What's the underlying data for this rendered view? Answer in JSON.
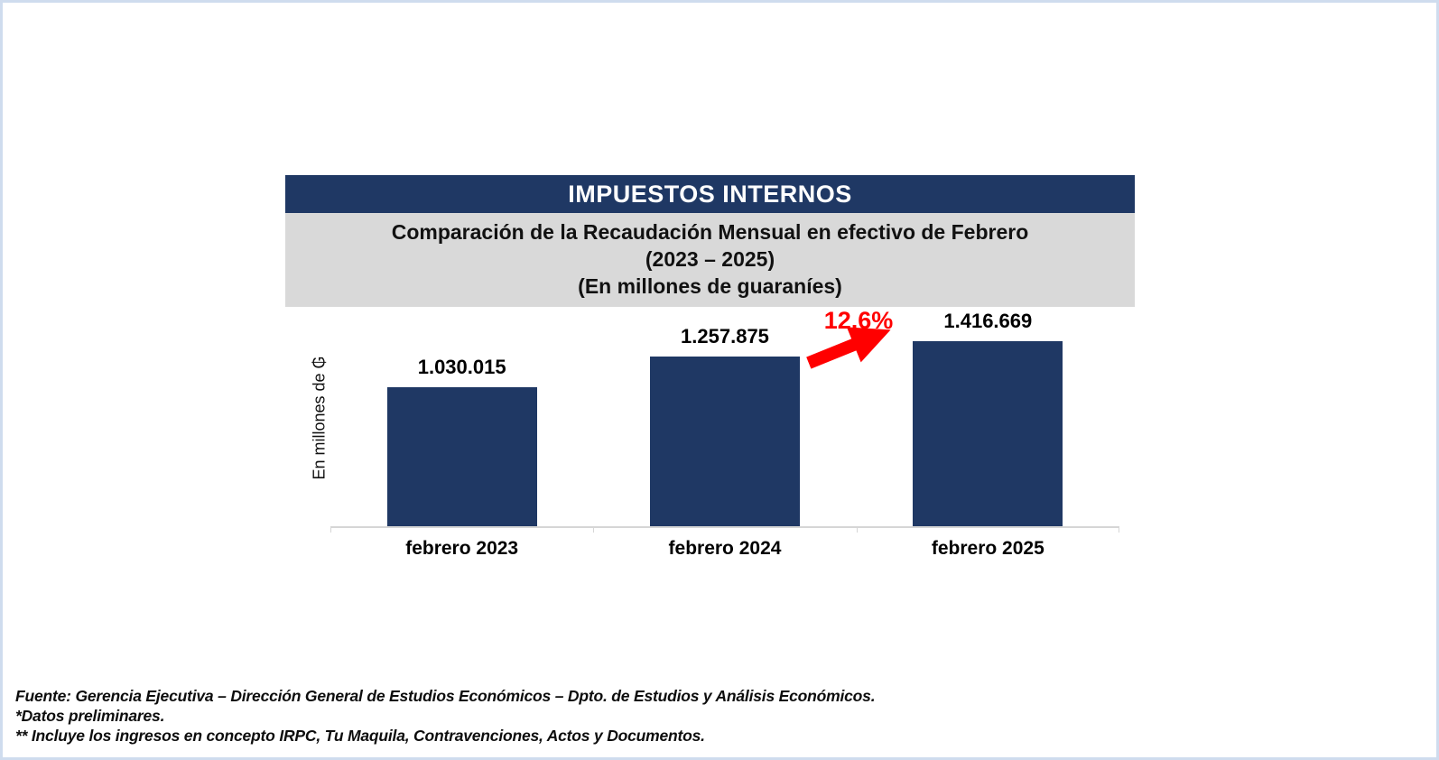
{
  "page": {
    "background": "#ffffff",
    "border_color": "#cfdcee"
  },
  "header": {
    "title": "IMPUESTOS INTERNOS",
    "title_bg": "#1f3864",
    "title_color": "#ffffff",
    "subtitle_bg": "#d9d9d9",
    "subtitle_lines": [
      "Comparación de la Recaudación Mensual en efectivo de Febrero",
      "(2023 – 2025)",
      "(En millones de guaraníes)"
    ]
  },
  "chart_data": {
    "type": "bar",
    "title": "IMPUESTOS INTERNOS",
    "subtitle": "Comparación de la Recaudación Mensual en efectivo de Febrero (2023 – 2025) (En millones de guaraníes)",
    "categories": [
      "febrero 2023",
      "febrero 2024",
      "febrero 2025"
    ],
    "values": [
      1030015,
      1257875,
      1416669
    ],
    "value_labels": [
      "1.030.015",
      "1.257.875",
      "1.416.669"
    ],
    "xlabel": "",
    "ylabel": "En millones de ₲",
    "ylim": [
      0,
      1620000
    ],
    "grid": false,
    "legend": false,
    "bar_color": "#1f3864",
    "annotation": {
      "text": "12,6%",
      "color": "#ff0000",
      "from": "febrero 2024",
      "to": "febrero 2025",
      "shape": "up-right-arrow"
    }
  },
  "footer": {
    "lines": [
      "Fuente: Gerencia Ejecutiva – Dirección General de Estudios Económicos – Dpto. de Estudios y Análisis Económicos.",
      "*Datos preliminares.",
      "** Incluye los ingresos en concepto IRPC, Tu Maquila, Contravenciones, Actos y Documentos."
    ]
  }
}
